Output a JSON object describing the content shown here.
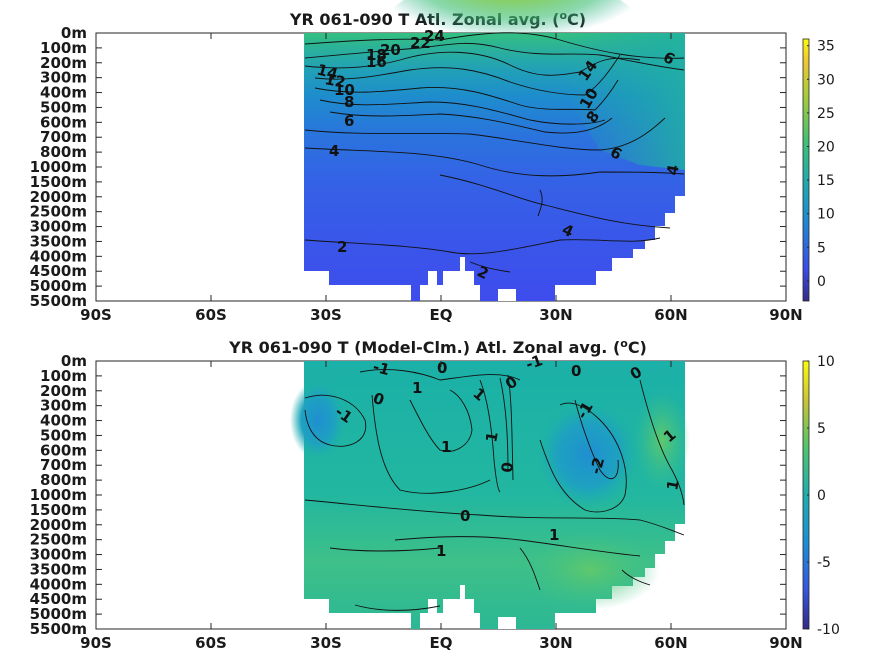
{
  "chart_data": [
    {
      "type": "heatmap",
      "title": "YR 061-090 T Atl. Zonal avg. (",
      "title_sup": "o",
      "title_end": "C)",
      "x_ticks": [
        "90S",
        "60S",
        "30S",
        "EQ",
        "30N",
        "60N",
        "90N"
      ],
      "x_values": [
        -90,
        -60,
        -30,
        0,
        30,
        60,
        90
      ],
      "y_ticks": [
        "0m",
        "100m",
        "200m",
        "300m",
        "400m",
        "500m",
        "600m",
        "700m",
        "800m",
        "1000m",
        "1500m",
        "2000m",
        "2500m",
        "3000m",
        "3500m",
        "4000m",
        "4500m",
        "5000m",
        "5500m"
      ],
      "colorbar": {
        "ticks": [
          "35",
          "30",
          "25",
          "20",
          "15",
          "10",
          "5",
          "0"
        ],
        "tick_values": [
          35,
          30,
          25,
          20,
          15,
          10,
          5,
          0
        ],
        "range": [
          -3,
          36
        ]
      },
      "data_extent_lat": [
        -34,
        64
      ],
      "contours": [
        {
          "label": "24",
          "level": 24
        },
        {
          "label": "22",
          "level": 22
        },
        {
          "label": "20",
          "level": 20
        },
        {
          "label": "18",
          "level": 18
        },
        {
          "label": "16",
          "level": 16
        },
        {
          "label": "14",
          "level": 14
        },
        {
          "label": "14",
          "level": 14
        },
        {
          "label": "12",
          "level": 12
        },
        {
          "label": "10",
          "level": 10
        },
        {
          "label": "10",
          "level": 10
        },
        {
          "label": "8",
          "level": 8
        },
        {
          "label": "8",
          "level": 8
        },
        {
          "label": "6",
          "level": 6
        },
        {
          "label": "6",
          "level": 6
        },
        {
          "label": "6",
          "level": 6
        },
        {
          "label": "4",
          "level": 4
        },
        {
          "label": "4",
          "level": 4
        },
        {
          "label": "4",
          "level": 4
        },
        {
          "label": "2",
          "level": 2
        },
        {
          "label": "2",
          "level": 2
        }
      ]
    },
    {
      "type": "heatmap",
      "title": "YR 061-090 T (Model-Clm.) Atl. Zonal avg. (",
      "title_sup": "o",
      "title_end": "C)",
      "x_ticks": [
        "90S",
        "60S",
        "30S",
        "EQ",
        "30N",
        "60N",
        "90N"
      ],
      "x_values": [
        -90,
        -60,
        -30,
        0,
        30,
        60,
        90
      ],
      "y_ticks": [
        "0m",
        "100m",
        "200m",
        "300m",
        "400m",
        "500m",
        "600m",
        "700m",
        "800m",
        "1000m",
        "1500m",
        "2000m",
        "2500m",
        "3000m",
        "3500m",
        "4000m",
        "4500m",
        "5000m",
        "5500m"
      ],
      "colorbar": {
        "ticks": [
          "10",
          "5",
          "0",
          "-5",
          "-10"
        ],
        "tick_values": [
          10,
          5,
          0,
          -5,
          -10
        ],
        "range": [
          -10,
          10
        ]
      },
      "data_extent_lat": [
        -34,
        64
      ],
      "contours": [
        {
          "label": "-1",
          "level": -1
        },
        {
          "label": "0",
          "level": 0
        },
        {
          "label": "0",
          "level": 0
        },
        {
          "label": "-1",
          "level": -1
        },
        {
          "label": "0",
          "level": 0
        },
        {
          "label": "0",
          "level": 0
        },
        {
          "label": "-1",
          "level": -1
        },
        {
          "label": "0",
          "level": 0
        },
        {
          "label": "1",
          "level": 1
        },
        {
          "label": "1",
          "level": 1
        },
        {
          "label": "1",
          "level": 1
        },
        {
          "label": "1",
          "level": 1
        },
        {
          "label": "0",
          "level": 0
        },
        {
          "label": "-1",
          "level": -1
        },
        {
          "label": "-2",
          "level": -2
        },
        {
          "label": "1",
          "level": 1
        },
        {
          "label": "1",
          "level": 1
        },
        {
          "label": "0",
          "level": 0
        },
        {
          "label": "1",
          "level": 1
        },
        {
          "label": "1",
          "level": 1
        }
      ]
    }
  ]
}
